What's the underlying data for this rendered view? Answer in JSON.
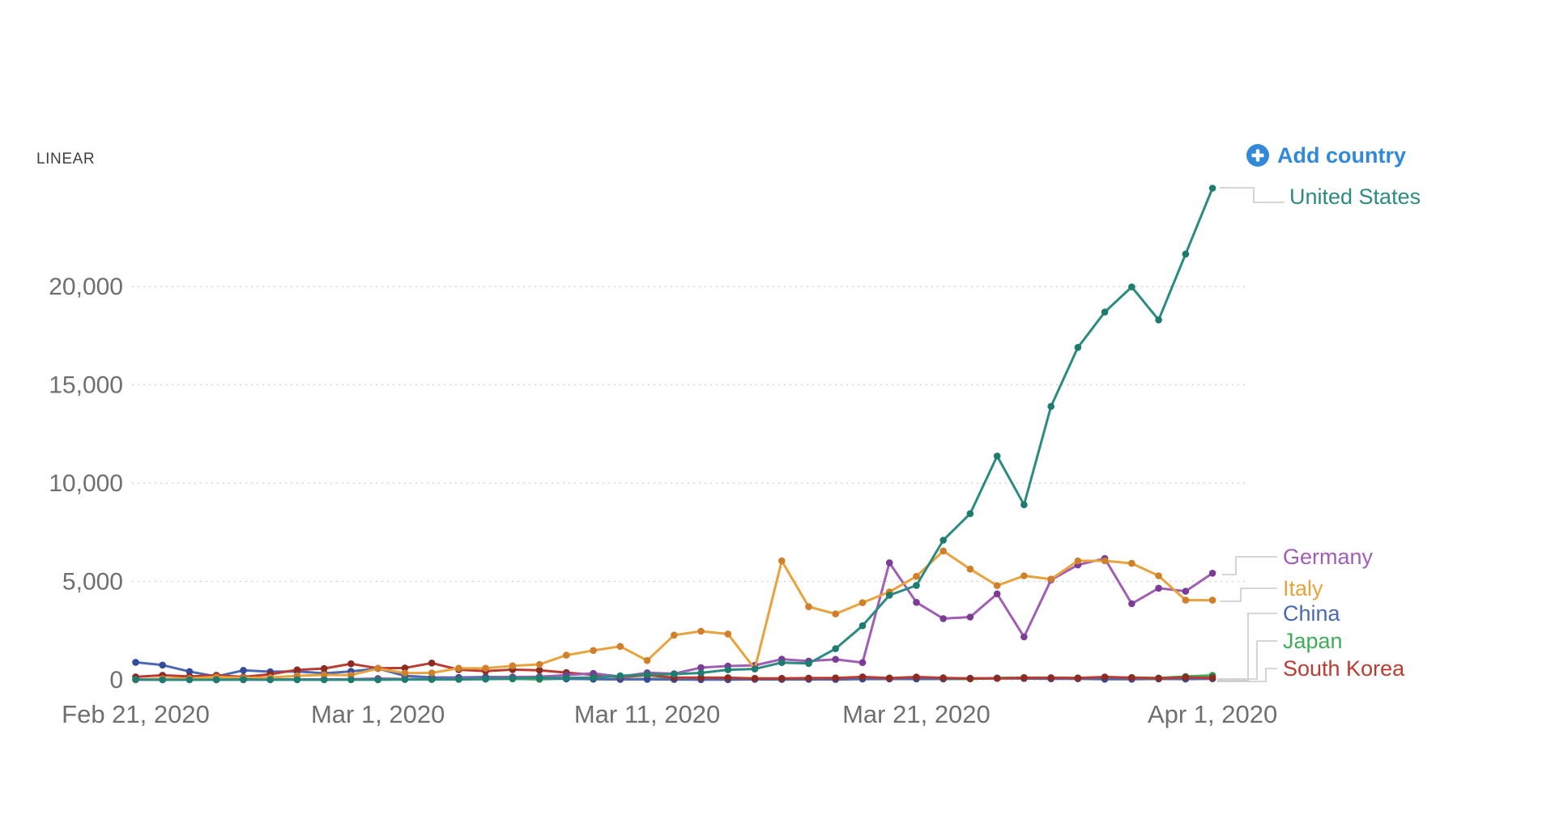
{
  "controls": {
    "scale_toggle": "LINEAR",
    "add_country": {
      "label": "Add country",
      "color": "#3389d9",
      "icon": "plus-circle-icon"
    }
  },
  "chart_data": {
    "type": "line",
    "title": "",
    "grid": "horizontal dashed",
    "legend_position": "right inline labels",
    "ylim": [
      0,
      25200
    ],
    "y_ticks": [
      0,
      5000,
      10000,
      15000,
      20000
    ],
    "y_tick_labels": [
      "0",
      "5,000",
      "10,000",
      "15,000",
      "20,000"
    ],
    "x_tick_labels": [
      {
        "label": "Feb 21, 2020",
        "day": 0
      },
      {
        "label": "Mar 1, 2020",
        "day": 9
      },
      {
        "label": "Mar 11, 2020",
        "day": 19
      },
      {
        "label": "Mar 21, 2020",
        "day": 29
      },
      {
        "label": "Apr 1, 2020",
        "day": 40
      }
    ],
    "x": [
      "2020-02-21",
      "2020-02-22",
      "2020-02-23",
      "2020-02-24",
      "2020-02-25",
      "2020-02-26",
      "2020-02-27",
      "2020-02-28",
      "2020-02-29",
      "2020-03-01",
      "2020-03-02",
      "2020-03-03",
      "2020-03-04",
      "2020-03-05",
      "2020-03-06",
      "2020-03-07",
      "2020-03-08",
      "2020-03-09",
      "2020-03-10",
      "2020-03-11",
      "2020-03-12",
      "2020-03-13",
      "2020-03-14",
      "2020-03-15",
      "2020-03-16",
      "2020-03-17",
      "2020-03-18",
      "2020-03-19",
      "2020-03-20",
      "2020-03-21",
      "2020-03-22",
      "2020-03-23",
      "2020-03-24",
      "2020-03-25",
      "2020-03-26",
      "2020-03-27",
      "2020-03-28",
      "2020-03-29",
      "2020-03-30",
      "2020-03-31",
      "2020-04-01"
    ],
    "series": [
      {
        "name": "United States",
        "color": "#2b8b81",
        "marker_color": "#1f7a70",
        "values": [
          20,
          0,
          0,
          0,
          20,
          0,
          5,
          0,
          5,
          5,
          20,
          15,
          20,
          35,
          75,
          105,
          95,
          120,
          200,
          270,
          290,
          350,
          510,
          550,
          875,
          830,
          1580,
          2750,
          4300,
          4800,
          7100,
          8450,
          11380,
          8900,
          13900,
          16900,
          18700,
          19980,
          18300,
          21650,
          25000
        ]
      },
      {
        "name": "Germany",
        "color": "#a05eb5",
        "marker_color": "#7a3d95",
        "values": [
          0,
          0,
          0,
          0,
          5,
          10,
          15,
          25,
          30,
          65,
          40,
          30,
          60,
          65,
          140,
          160,
          240,
          330,
          160,
          360,
          310,
          620,
          700,
          735,
          1045,
          950,
          1040,
          875,
          5950,
          3940,
          3110,
          3190,
          4370,
          2180,
          5080,
          5840,
          6170,
          3870,
          4660,
          4500,
          5420
        ]
      },
      {
        "name": "Italy",
        "color": "#e8a33c",
        "marker_color": "#d07f2c",
        "values": [
          10,
          60,
          70,
          150,
          100,
          120,
          200,
          250,
          240,
          570,
          340,
          350,
          590,
          590,
          710,
          780,
          1250,
          1490,
          1700,
          980,
          2270,
          2470,
          2330,
          560,
          6050,
          3715,
          3350,
          3920,
          4470,
          5260,
          6550,
          5630,
          4790,
          5290,
          5120,
          6050,
          6050,
          5920,
          5290,
          4050,
          4050
        ]
      },
      {
        "name": "China",
        "color": "#4a69b2",
        "marker_color": "#354d9b",
        "values": [
          890,
          750,
          420,
          170,
          480,
          410,
          430,
          330,
          430,
          570,
          200,
          125,
          120,
          140,
          145,
          100,
          45,
          40,
          20,
          25,
          15,
          10,
          10,
          20,
          15,
          20,
          15,
          35,
          40,
          40,
          45,
          80,
          75,
          65,
          50,
          55,
          30,
          30,
          45,
          35,
          55
        ]
      },
      {
        "name": "Japan",
        "color": "#3fae5a",
        "marker_color": "#2c9146",
        "values": [
          10,
          10,
          15,
          15,
          10,
          20,
          25,
          20,
          15,
          10,
          15,
          20,
          30,
          35,
          45,
          25,
          60,
          30,
          25,
          55,
          50,
          55,
          40,
          35,
          40,
          45,
          65,
          90,
          95,
          55,
          40,
          40,
          95,
          115,
          95,
          95,
          90,
          120,
          90,
          170,
          225
        ]
      },
      {
        "name": "South Korea",
        "color": "#bb3b31",
        "marker_color": "#8c2b23",
        "values": [
          150,
          230,
          170,
          230,
          145,
          285,
          505,
          570,
          815,
          585,
          600,
          850,
          515,
          440,
          520,
          485,
          365,
          250,
          130,
          240,
          115,
          110,
          105,
          75,
          75,
          85,
          95,
          150,
          85,
          145,
          100,
          65,
          75,
          100,
          105,
          90,
          145,
          105,
          80,
          125,
          100
        ]
      }
    ]
  }
}
